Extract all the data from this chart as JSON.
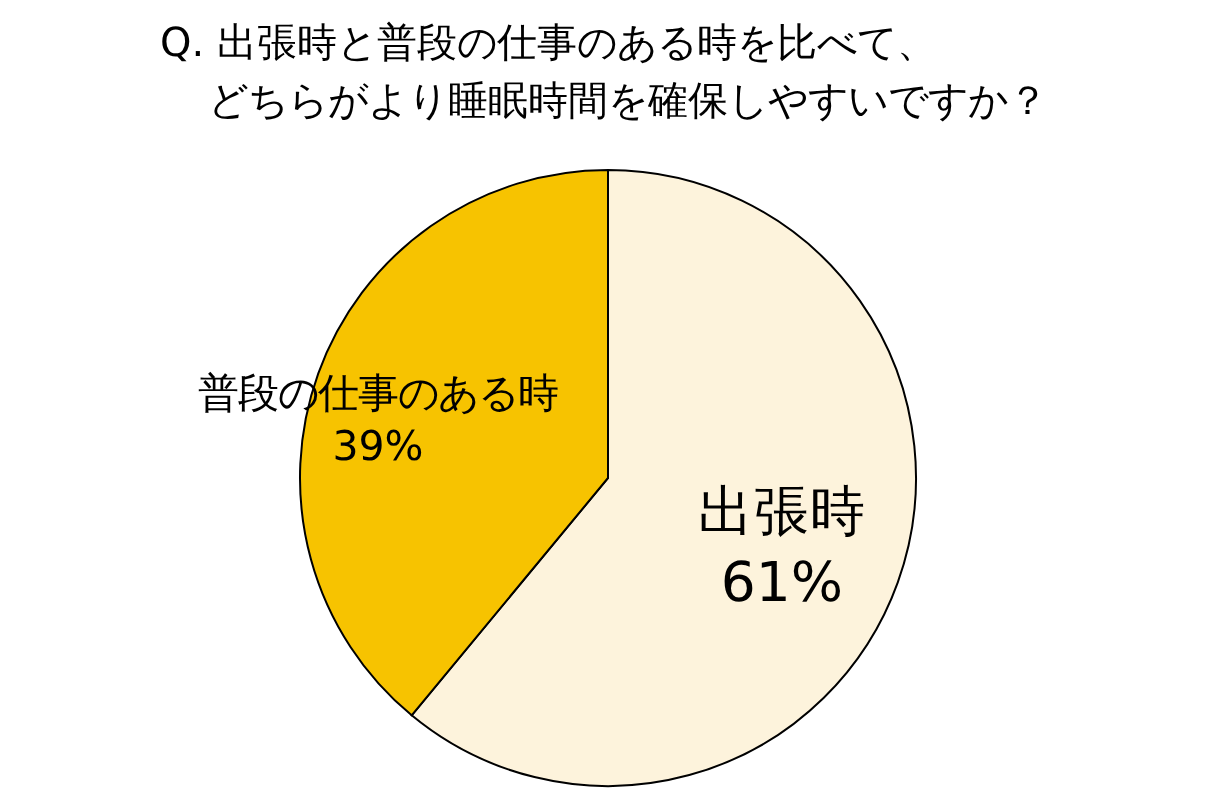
{
  "chart_data": {
    "type": "pie",
    "title": "Q. 出張時と普段の仕事のある時を比べて、どちらがより睡眠時間を確保しやすいですか？",
    "categories": [
      "出張時",
      "普段の仕事のある時"
    ],
    "values": [
      61,
      39
    ],
    "colors": [
      "#fdf3dc",
      "#f7c300"
    ],
    "value_labels": [
      "61%",
      "39%"
    ]
  }
}
